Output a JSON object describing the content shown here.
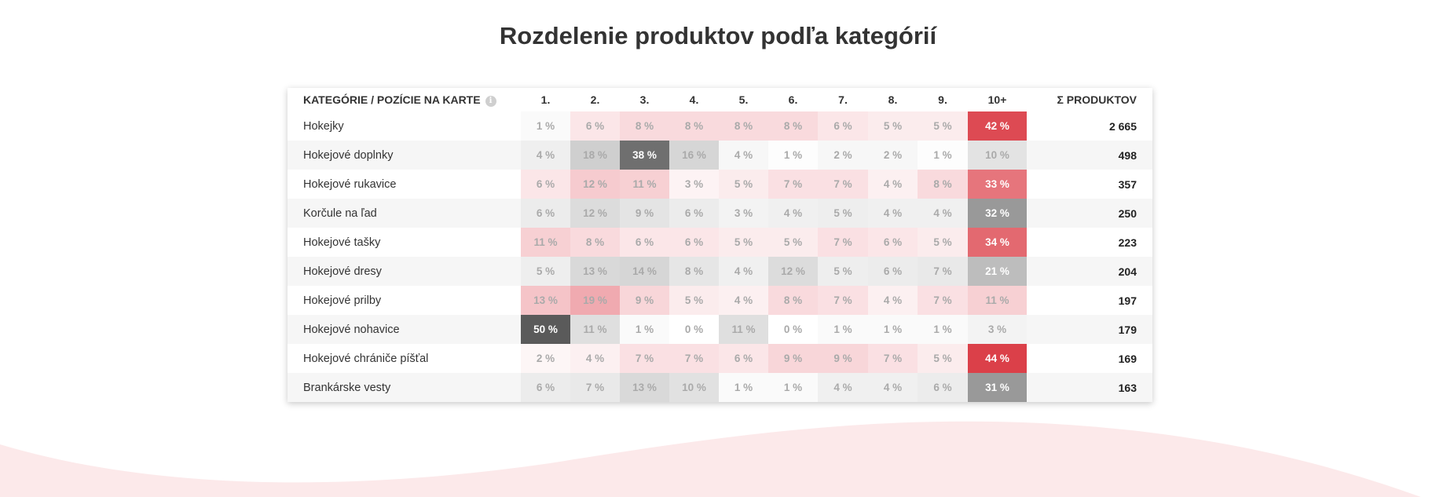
{
  "page": {
    "title": "Rozdelenie produktov podľa kategórií"
  },
  "table": {
    "header": {
      "category": "KATEGÓRIE / POZÍCIE NA KARTE",
      "info_icon": "info-icon",
      "positions": [
        "1.",
        "2.",
        "3.",
        "4.",
        "5.",
        "6.",
        "7.",
        "8.",
        "9.",
        "10+"
      ],
      "sum": "Σ PRODUKTOV"
    },
    "rows": [
      {
        "name": "Hokejky",
        "cells": [
          {
            "text": "1 %",
            "bg": "#fafafa",
            "fg": "#aaaaaa"
          },
          {
            "text": "6 %",
            "bg": "#fbe6e8",
            "fg": "#aaaaaa"
          },
          {
            "text": "8 %",
            "bg": "#f9dadd",
            "fg": "#aaaaaa"
          },
          {
            "text": "8 %",
            "bg": "#f9dadd",
            "fg": "#aaaaaa"
          },
          {
            "text": "8 %",
            "bg": "#f9dadd",
            "fg": "#aaaaaa"
          },
          {
            "text": "8 %",
            "bg": "#f9dadd",
            "fg": "#aaaaaa"
          },
          {
            "text": "6 %",
            "bg": "#fbe6e8",
            "fg": "#aaaaaa"
          },
          {
            "text": "5 %",
            "bg": "#fbeced",
            "fg": "#aaaaaa"
          },
          {
            "text": "5 %",
            "bg": "#fbeced",
            "fg": "#aaaaaa"
          },
          {
            "text": "42 %",
            "bg": "#dd4a53",
            "fg": "#ffffff"
          }
        ],
        "sum": "2 665"
      },
      {
        "name": "Hokejové doplnky",
        "cells": [
          {
            "text": "4 %",
            "bg": "#efefef",
            "fg": "#aaaaaa"
          },
          {
            "text": "18 %",
            "bg": "#cfcfcf",
            "fg": "#aaaaaa"
          },
          {
            "text": "38 %",
            "bg": "#6f6f6f",
            "fg": "#ffffff"
          },
          {
            "text": "16 %",
            "bg": "#d6d6d6",
            "fg": "#aaaaaa"
          },
          {
            "text": "4 %",
            "bg": "#f7f7f7",
            "fg": "#aaaaaa"
          },
          {
            "text": "1 %",
            "bg": "#fdfdfd",
            "fg": "#aaaaaa"
          },
          {
            "text": "2 %",
            "bg": "#f7f7f7",
            "fg": "#aaaaaa"
          },
          {
            "text": "2 %",
            "bg": "#f7f7f7",
            "fg": "#aaaaaa"
          },
          {
            "text": "1 %",
            "bg": "#fdfdfd",
            "fg": "#aaaaaa"
          },
          {
            "text": "10 %",
            "bg": "#e3e3e3",
            "fg": "#aaaaaa"
          }
        ],
        "sum": "498"
      },
      {
        "name": "Hokejové rukavice",
        "cells": [
          {
            "text": "6 %",
            "bg": "#fbe6e8",
            "fg": "#aaaaaa"
          },
          {
            "text": "12 %",
            "bg": "#f6cbcf",
            "fg": "#aaaaaa"
          },
          {
            "text": "11 %",
            "bg": "#f7d0d3",
            "fg": "#aaaaaa"
          },
          {
            "text": "3 %",
            "bg": "#fdf3f4",
            "fg": "#aaaaaa"
          },
          {
            "text": "5 %",
            "bg": "#fbeced",
            "fg": "#aaaaaa"
          },
          {
            "text": "7 %",
            "bg": "#fae0e3",
            "fg": "#aaaaaa"
          },
          {
            "text": "7 %",
            "bg": "#fae0e3",
            "fg": "#aaaaaa"
          },
          {
            "text": "4 %",
            "bg": "#fcf0f1",
            "fg": "#aaaaaa"
          },
          {
            "text": "8 %",
            "bg": "#f9dadd",
            "fg": "#aaaaaa"
          },
          {
            "text": "33 %",
            "bg": "#e6757c",
            "fg": "#ffffff"
          }
        ],
        "sum": "357"
      },
      {
        "name": "Korčule na ľad",
        "cells": [
          {
            "text": "6 %",
            "bg": "#ececec",
            "fg": "#aaaaaa"
          },
          {
            "text": "12 %",
            "bg": "#dcdcdc",
            "fg": "#aaaaaa"
          },
          {
            "text": "9 %",
            "bg": "#e4e4e4",
            "fg": "#aaaaaa"
          },
          {
            "text": "6 %",
            "bg": "#ececec",
            "fg": "#aaaaaa"
          },
          {
            "text": "3 %",
            "bg": "#f3f3f3",
            "fg": "#aaaaaa"
          },
          {
            "text": "4 %",
            "bg": "#f0f0f0",
            "fg": "#aaaaaa"
          },
          {
            "text": "5 %",
            "bg": "#eeeeee",
            "fg": "#aaaaaa"
          },
          {
            "text": "4 %",
            "bg": "#f0f0f0",
            "fg": "#aaaaaa"
          },
          {
            "text": "4 %",
            "bg": "#f0f0f0",
            "fg": "#aaaaaa"
          },
          {
            "text": "32 %",
            "bg": "#999999",
            "fg": "#ffffff"
          }
        ],
        "sum": "250"
      },
      {
        "name": "Hokejové tašky",
        "cells": [
          {
            "text": "11 %",
            "bg": "#f7d0d3",
            "fg": "#aaaaaa"
          },
          {
            "text": "8 %",
            "bg": "#f9dadd",
            "fg": "#aaaaaa"
          },
          {
            "text": "6 %",
            "bg": "#fbe6e8",
            "fg": "#aaaaaa"
          },
          {
            "text": "6 %",
            "bg": "#fbe6e8",
            "fg": "#aaaaaa"
          },
          {
            "text": "5 %",
            "bg": "#fbeced",
            "fg": "#aaaaaa"
          },
          {
            "text": "5 %",
            "bg": "#fbeced",
            "fg": "#aaaaaa"
          },
          {
            "text": "7 %",
            "bg": "#fae0e3",
            "fg": "#aaaaaa"
          },
          {
            "text": "6 %",
            "bg": "#fbe6e8",
            "fg": "#aaaaaa"
          },
          {
            "text": "5 %",
            "bg": "#fbeced",
            "fg": "#aaaaaa"
          },
          {
            "text": "34 %",
            "bg": "#e36970",
            "fg": "#ffffff"
          }
        ],
        "sum": "223"
      },
      {
        "name": "Hokejové dresy",
        "cells": [
          {
            "text": "5 %",
            "bg": "#eeeeee",
            "fg": "#aaaaaa"
          },
          {
            "text": "13 %",
            "bg": "#d9d9d9",
            "fg": "#aaaaaa"
          },
          {
            "text": "14 %",
            "bg": "#d6d6d6",
            "fg": "#aaaaaa"
          },
          {
            "text": "8 %",
            "bg": "#e6e6e6",
            "fg": "#aaaaaa"
          },
          {
            "text": "4 %",
            "bg": "#f0f0f0",
            "fg": "#aaaaaa"
          },
          {
            "text": "12 %",
            "bg": "#dcdcdc",
            "fg": "#aaaaaa"
          },
          {
            "text": "5 %",
            "bg": "#eeeeee",
            "fg": "#aaaaaa"
          },
          {
            "text": "6 %",
            "bg": "#ececec",
            "fg": "#aaaaaa"
          },
          {
            "text": "7 %",
            "bg": "#e9e9e9",
            "fg": "#aaaaaa"
          },
          {
            "text": "21 %",
            "bg": "#bdbdbd",
            "fg": "#ffffff"
          }
        ],
        "sum": "204"
      },
      {
        "name": "Hokejové prilby",
        "cells": [
          {
            "text": "13 %",
            "bg": "#f5c4c8",
            "fg": "#aaaaaa"
          },
          {
            "text": "19 %",
            "bg": "#f0aab0",
            "fg": "#aaaaaa"
          },
          {
            "text": "9 %",
            "bg": "#f8d6d9",
            "fg": "#aaaaaa"
          },
          {
            "text": "5 %",
            "bg": "#fbeced",
            "fg": "#aaaaaa"
          },
          {
            "text": "4 %",
            "bg": "#fcf0f1",
            "fg": "#aaaaaa"
          },
          {
            "text": "8 %",
            "bg": "#f9dadd",
            "fg": "#aaaaaa"
          },
          {
            "text": "7 %",
            "bg": "#fae0e3",
            "fg": "#aaaaaa"
          },
          {
            "text": "4 %",
            "bg": "#fcf0f1",
            "fg": "#aaaaaa"
          },
          {
            "text": "7 %",
            "bg": "#fae0e3",
            "fg": "#aaaaaa"
          },
          {
            "text": "11 %",
            "bg": "#f7d0d3",
            "fg": "#aaaaaa"
          }
        ],
        "sum": "197"
      },
      {
        "name": "Hokejové nohavice",
        "cells": [
          {
            "text": "50 %",
            "bg": "#5a5a5a",
            "fg": "#ffffff"
          },
          {
            "text": "11 %",
            "bg": "#dfdfdf",
            "fg": "#aaaaaa"
          },
          {
            "text": "1 %",
            "bg": "#fafafa",
            "fg": "#aaaaaa"
          },
          {
            "text": "0 %",
            "bg": "#ffffff",
            "fg": "#aaaaaa"
          },
          {
            "text": "11 %",
            "bg": "#dfdfdf",
            "fg": "#aaaaaa"
          },
          {
            "text": "0 %",
            "bg": "#ffffff",
            "fg": "#aaaaaa"
          },
          {
            "text": "1 %",
            "bg": "#fafafa",
            "fg": "#aaaaaa"
          },
          {
            "text": "1 %",
            "bg": "#fafafa",
            "fg": "#aaaaaa"
          },
          {
            "text": "1 %",
            "bg": "#fafafa",
            "fg": "#aaaaaa"
          },
          {
            "text": "3 %",
            "bg": "#f3f3f3",
            "fg": "#aaaaaa"
          }
        ],
        "sum": "179"
      },
      {
        "name": "Hokejové chrániče píšťal",
        "cells": [
          {
            "text": "2 %",
            "bg": "#fdf6f6",
            "fg": "#aaaaaa"
          },
          {
            "text": "4 %",
            "bg": "#fcf0f1",
            "fg": "#aaaaaa"
          },
          {
            "text": "7 %",
            "bg": "#fae0e3",
            "fg": "#aaaaaa"
          },
          {
            "text": "7 %",
            "bg": "#fae0e3",
            "fg": "#aaaaaa"
          },
          {
            "text": "6 %",
            "bg": "#fbe6e8",
            "fg": "#aaaaaa"
          },
          {
            "text": "9 %",
            "bg": "#f8d6d9",
            "fg": "#aaaaaa"
          },
          {
            "text": "9 %",
            "bg": "#f8d6d9",
            "fg": "#aaaaaa"
          },
          {
            "text": "7 %",
            "bg": "#fae0e3",
            "fg": "#aaaaaa"
          },
          {
            "text": "5 %",
            "bg": "#fbeced",
            "fg": "#aaaaaa"
          },
          {
            "text": "44 %",
            "bg": "#db4049",
            "fg": "#ffffff"
          }
        ],
        "sum": "169"
      },
      {
        "name": "Brankárske vesty",
        "cells": [
          {
            "text": "6 %",
            "bg": "#ececec",
            "fg": "#aaaaaa"
          },
          {
            "text": "7 %",
            "bg": "#e9e9e9",
            "fg": "#aaaaaa"
          },
          {
            "text": "13 %",
            "bg": "#d9d9d9",
            "fg": "#aaaaaa"
          },
          {
            "text": "10 %",
            "bg": "#e1e1e1",
            "fg": "#aaaaaa"
          },
          {
            "text": "1 %",
            "bg": "#fafafa",
            "fg": "#aaaaaa"
          },
          {
            "text": "1 %",
            "bg": "#fafafa",
            "fg": "#aaaaaa"
          },
          {
            "text": "4 %",
            "bg": "#f0f0f0",
            "fg": "#aaaaaa"
          },
          {
            "text": "4 %",
            "bg": "#f0f0f0",
            "fg": "#aaaaaa"
          },
          {
            "text": "6 %",
            "bg": "#ececec",
            "fg": "#aaaaaa"
          },
          {
            "text": "31 %",
            "bg": "#999999",
            "fg": "#ffffff"
          }
        ],
        "sum": "163"
      }
    ]
  },
  "decor": {
    "wave_color": "#fce9ea"
  }
}
